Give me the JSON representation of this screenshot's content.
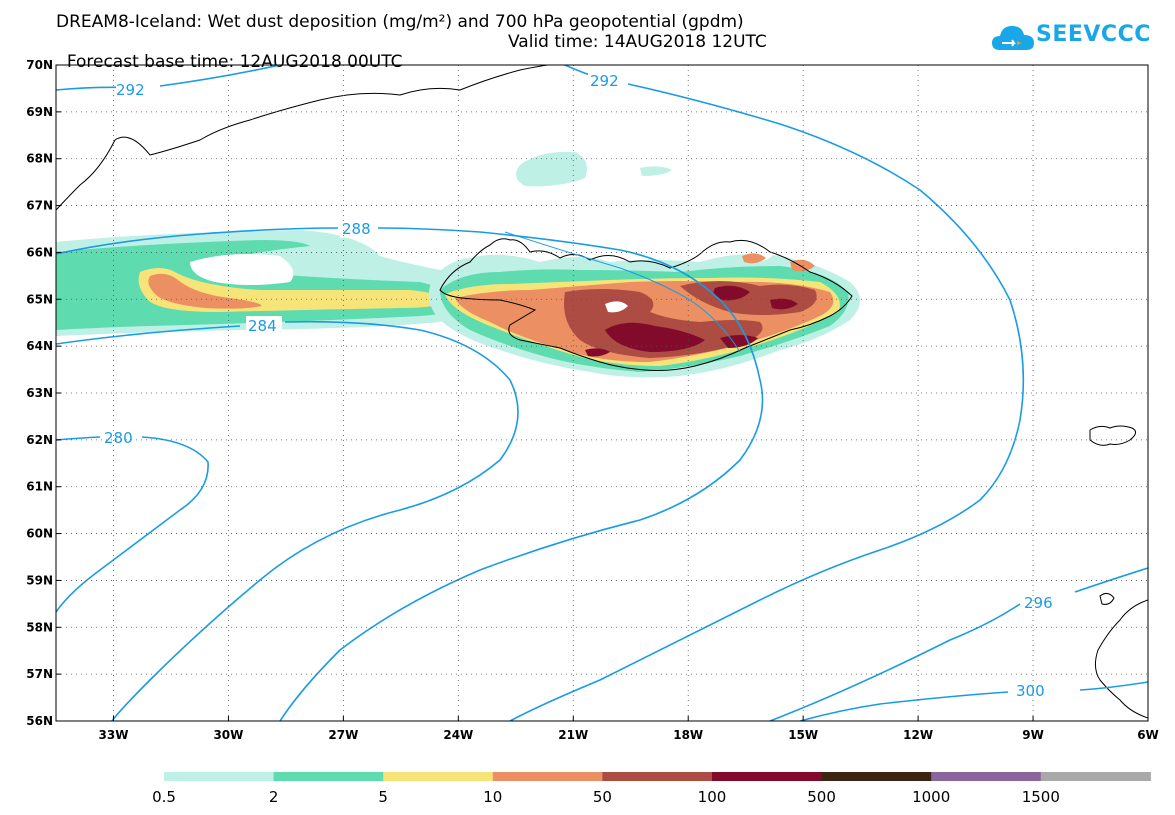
{
  "title": {
    "line1": "DREAM8-Iceland: Wet dust deposition (mg/m²) and 700 hPa geopotential (gpdm)",
    "base": "Forecast base time: 12AUG2018 00UTC",
    "valid": "Valid time: 14AUG2018 12UTC"
  },
  "logo": {
    "text": "SEEVCCC",
    "icon": "cloud-arrow-icon",
    "color": "#1aa7e8"
  },
  "map": {
    "lon_range": [
      -34.5,
      -6
    ],
    "lat_range": [
      56,
      70
    ],
    "lat_labels": [
      "70N",
      "69N",
      "68N",
      "67N",
      "66N",
      "65N",
      "64N",
      "63N",
      "62N",
      "61N",
      "60N",
      "59N",
      "58N",
      "57N",
      "56N"
    ],
    "lon_labels": [
      "33W",
      "30W",
      "27W",
      "24W",
      "21W",
      "18W",
      "15W",
      "12W",
      "9W",
      "6W"
    ],
    "contour_color": "#1a9be6",
    "contours": [
      {
        "value": "292",
        "label": "292"
      },
      {
        "value": "292b",
        "label": "292"
      },
      {
        "value": "288",
        "label": "288"
      },
      {
        "value": "284",
        "label": "284"
      },
      {
        "value": "280",
        "label": "280"
      },
      {
        "value": "296",
        "label": "296"
      },
      {
        "value": "300",
        "label": "300"
      }
    ]
  },
  "legend": {
    "labels": [
      "0.5",
      "2",
      "5",
      "10",
      "50",
      "100",
      "500",
      "1000",
      "1500"
    ],
    "colors": [
      "#bff0e6",
      "#5fdbb0",
      "#f7e478",
      "#ec8f62",
      "#ac4c42",
      "#820a2a",
      "#3c2312",
      "#8c649e",
      "#a8a8a8"
    ]
  }
}
